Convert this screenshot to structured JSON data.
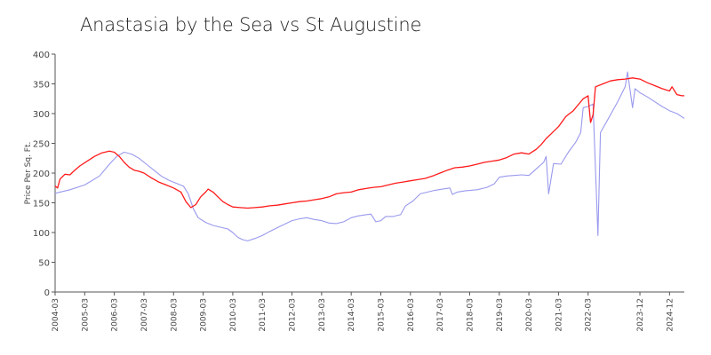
{
  "chart_data": {
    "type": "line",
    "title": "Anastasia by the Sea vs St Augustine",
    "xlabel": "",
    "ylabel": "Price Per Sq. Ft.",
    "ylim": [
      0,
      400
    ],
    "yticks": [
      0,
      50,
      100,
      150,
      200,
      250,
      300,
      350,
      400
    ],
    "xlim": [
      "2004-03",
      "2025-06"
    ],
    "xticks": [
      "2004-03",
      "2005-03",
      "2006-03",
      "2007-03",
      "2008-03",
      "2009-03",
      "2010-03",
      "2011-03",
      "2012-03",
      "2013-03",
      "2014-03",
      "2015-03",
      "2016-03",
      "2017-03",
      "2018-03",
      "2019-03",
      "2020-03",
      "2021-03",
      "2022-03",
      "2023-12",
      "2024-12"
    ],
    "grid": false,
    "legend": "none",
    "colors": {
      "series_1": "#ff1a1a",
      "series_2": "#9999ee",
      "axis": "#555555"
    },
    "series": [
      {
        "points": [
          [
            "2004-03",
            178
          ],
          [
            "2004-04",
            175
          ],
          [
            "2004-05",
            190
          ],
          [
            "2004-07",
            198
          ],
          [
            "2004-09",
            197
          ],
          [
            "2004-11",
            205
          ],
          [
            "2005-01",
            212
          ],
          [
            "2005-04",
            220
          ],
          [
            "2005-07",
            228
          ],
          [
            "2005-10",
            234
          ],
          [
            "2006-01",
            237
          ],
          [
            "2006-03",
            235
          ],
          [
            "2006-05",
            228
          ],
          [
            "2006-07",
            218
          ],
          [
            "2006-09",
            210
          ],
          [
            "2006-11",
            205
          ],
          [
            "2007-01",
            203
          ],
          [
            "2007-03",
            200
          ],
          [
            "2007-06",
            192
          ],
          [
            "2007-09",
            185
          ],
          [
            "2007-12",
            180
          ],
          [
            "2008-03",
            175
          ],
          [
            "2008-06",
            168
          ],
          [
            "2008-08",
            152
          ],
          [
            "2008-10",
            142
          ],
          [
            "2008-12",
            147
          ],
          [
            "2009-02",
            160
          ],
          [
            "2009-04",
            168
          ],
          [
            "2009-05",
            173
          ],
          [
            "2009-07",
            168
          ],
          [
            "2009-09",
            160
          ],
          [
            "2009-11",
            152
          ],
          [
            "2010-01",
            147
          ],
          [
            "2010-03",
            143
          ],
          [
            "2010-06",
            142
          ],
          [
            "2010-09",
            141
          ],
          [
            "2010-12",
            142
          ],
          [
            "2011-03",
            143
          ],
          [
            "2011-06",
            145
          ],
          [
            "2011-09",
            146
          ],
          [
            "2011-12",
            148
          ],
          [
            "2012-03",
            150
          ],
          [
            "2012-06",
            152
          ],
          [
            "2012-09",
            153
          ],
          [
            "2012-12",
            155
          ],
          [
            "2013-03",
            157
          ],
          [
            "2013-06",
            160
          ],
          [
            "2013-09",
            165
          ],
          [
            "2013-12",
            167
          ],
          [
            "2014-03",
            168
          ],
          [
            "2014-06",
            172
          ],
          [
            "2014-09",
            174
          ],
          [
            "2014-12",
            176
          ],
          [
            "2015-03",
            177
          ],
          [
            "2015-06",
            180
          ],
          [
            "2015-09",
            183
          ],
          [
            "2015-12",
            185
          ],
          [
            "2016-03",
            187
          ],
          [
            "2016-06",
            189
          ],
          [
            "2016-09",
            191
          ],
          [
            "2016-12",
            195
          ],
          [
            "2017-03",
            200
          ],
          [
            "2017-06",
            205
          ],
          [
            "2017-09",
            209
          ],
          [
            "2017-12",
            210
          ],
          [
            "2018-03",
            212
          ],
          [
            "2018-06",
            215
          ],
          [
            "2018-09",
            218
          ],
          [
            "2018-12",
            220
          ],
          [
            "2019-03",
            222
          ],
          [
            "2019-06",
            226
          ],
          [
            "2019-09",
            232
          ],
          [
            "2019-12",
            234
          ],
          [
            "2020-03",
            232
          ],
          [
            "2020-06",
            240
          ],
          [
            "2020-08",
            248
          ],
          [
            "2020-10",
            258
          ],
          [
            "2020-12",
            266
          ],
          [
            "2021-03",
            278
          ],
          [
            "2021-06",
            295
          ],
          [
            "2021-09",
            305
          ],
          [
            "2021-11",
            315
          ],
          [
            "2022-01",
            325
          ],
          [
            "2022-03",
            330
          ],
          [
            "2022-04",
            285
          ],
          [
            "2022-05",
            298
          ],
          [
            "2022-06",
            345
          ],
          [
            "2022-09",
            350
          ],
          [
            "2022-12",
            355
          ],
          [
            "2023-03",
            357
          ],
          [
            "2023-06",
            358
          ],
          [
            "2023-09",
            360
          ],
          [
            "2023-12",
            358
          ],
          [
            "2024-03",
            352
          ],
          [
            "2024-06",
            347
          ],
          [
            "2024-09",
            342
          ],
          [
            "2024-12",
            338
          ],
          [
            "2025-01",
            345
          ],
          [
            "2025-03",
            332
          ],
          [
            "2025-05",
            330
          ],
          [
            "2025-06",
            330
          ]
        ]
      },
      {
        "points": [
          [
            "2004-03",
            166
          ],
          [
            "2004-09",
            172
          ],
          [
            "2005-03",
            180
          ],
          [
            "2005-09",
            195
          ],
          [
            "2006-01",
            215
          ],
          [
            "2006-04",
            228
          ],
          [
            "2006-07",
            235
          ],
          [
            "2006-10",
            232
          ],
          [
            "2007-01",
            225
          ],
          [
            "2007-04",
            215
          ],
          [
            "2007-07",
            205
          ],
          [
            "2007-10",
            195
          ],
          [
            "2008-01",
            188
          ],
          [
            "2008-04",
            183
          ],
          [
            "2008-07",
            178
          ],
          [
            "2008-09",
            165
          ],
          [
            "2008-11",
            140
          ],
          [
            "2009-01",
            125
          ],
          [
            "2009-04",
            117
          ],
          [
            "2009-07",
            112
          ],
          [
            "2009-10",
            109
          ],
          [
            "2010-01",
            106
          ],
          [
            "2010-03",
            100
          ],
          [
            "2010-05",
            92
          ],
          [
            "2010-07",
            88
          ],
          [
            "2010-09",
            86
          ],
          [
            "2010-12",
            90
          ],
          [
            "2011-03",
            95
          ],
          [
            "2011-06",
            102
          ],
          [
            "2011-09",
            108
          ],
          [
            "2011-12",
            114
          ],
          [
            "2012-03",
            120
          ],
          [
            "2012-06",
            123
          ],
          [
            "2012-09",
            125
          ],
          [
            "2012-12",
            122
          ],
          [
            "2013-03",
            120
          ],
          [
            "2013-06",
            116
          ],
          [
            "2013-09",
            115
          ],
          [
            "2013-12",
            118
          ],
          [
            "2014-03",
            125
          ],
          [
            "2014-06",
            128
          ],
          [
            "2014-09",
            130
          ],
          [
            "2014-11",
            131
          ],
          [
            "2015-01",
            118
          ],
          [
            "2015-03",
            120
          ],
          [
            "2015-05",
            127
          ],
          [
            "2015-08",
            127
          ],
          [
            "2015-11",
            130
          ],
          [
            "2016-01",
            145
          ],
          [
            "2016-04",
            153
          ],
          [
            "2016-07",
            165
          ],
          [
            "2016-10",
            168
          ],
          [
            "2017-01",
            171
          ],
          [
            "2017-04",
            173
          ],
          [
            "2017-07",
            175
          ],
          [
            "2017-08",
            164
          ],
          [
            "2017-10",
            168
          ],
          [
            "2018-01",
            170
          ],
          [
            "2018-06",
            172
          ],
          [
            "2018-10",
            176
          ],
          [
            "2019-01",
            182
          ],
          [
            "2019-03",
            193
          ],
          [
            "2019-06",
            195
          ],
          [
            "2019-09",
            196
          ],
          [
            "2019-12",
            197
          ],
          [
            "2020-03",
            196
          ],
          [
            "2020-06",
            207
          ],
          [
            "2020-09",
            218
          ],
          [
            "2020-10",
            228
          ],
          [
            "2020-11",
            165
          ],
          [
            "2021-01",
            216
          ],
          [
            "2021-04",
            215
          ],
          [
            "2021-07",
            235
          ],
          [
            "2021-10",
            252
          ],
          [
            "2021-12",
            268
          ],
          [
            "2022-01",
            310
          ],
          [
            "2022-03",
            312
          ],
          [
            "2022-05",
            316
          ],
          [
            "2022-07",
            95
          ],
          [
            "2022-08",
            268
          ],
          [
            "2022-11",
            290
          ],
          [
            "2023-03",
            320
          ],
          [
            "2023-06",
            345
          ],
          [
            "2023-07",
            370
          ],
          [
            "2023-09",
            310
          ],
          [
            "2023-10",
            342
          ],
          [
            "2023-12",
            335
          ],
          [
            "2024-03",
            328
          ],
          [
            "2024-06",
            320
          ],
          [
            "2024-09",
            312
          ],
          [
            "2024-12",
            305
          ],
          [
            "2025-03",
            300
          ],
          [
            "2025-06",
            292
          ]
        ]
      }
    ]
  }
}
